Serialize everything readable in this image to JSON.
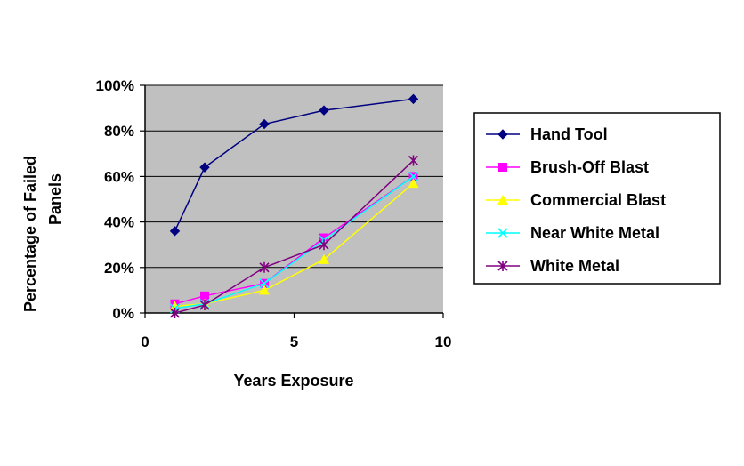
{
  "chart_data": {
    "type": "line",
    "xlabel": "Years Exposure",
    "ylabel_lines": [
      "Percentage of Failed",
      "Panels"
    ],
    "xlim": [
      0,
      10
    ],
    "ylim": [
      0,
      1
    ],
    "xticks": [
      {
        "value": 0,
        "label": "0"
      },
      {
        "value": 5,
        "label": "5"
      },
      {
        "value": 10,
        "label": "10"
      }
    ],
    "yticks": [
      {
        "value": 0,
        "label": "0%"
      },
      {
        "value": 0.2,
        "label": "20%"
      },
      {
        "value": 0.4,
        "label": "40%"
      },
      {
        "value": 0.6,
        "label": "60%"
      },
      {
        "value": 0.8,
        "label": "80%"
      },
      {
        "value": 1.0,
        "label": "100%"
      }
    ],
    "grid": "horizontal",
    "plot_background": "#C0C0C0",
    "legend_position": "right",
    "series": [
      {
        "name": "Hand Tool",
        "color": "#000080",
        "marker": "diamond",
        "x": [
          1,
          2,
          4,
          6,
          9
        ],
        "y": [
          0.36,
          0.64,
          0.83,
          0.89,
          0.94
        ]
      },
      {
        "name": "Brush-Off Blast",
        "color": "#FF00FF",
        "marker": "square",
        "x": [
          1,
          2,
          4,
          6,
          9
        ],
        "y": [
          0.04,
          0.075,
          0.13,
          0.33,
          0.6
        ]
      },
      {
        "name": "Commercial Blast",
        "color": "#FFFF00",
        "marker": "triangle",
        "x": [
          1,
          2,
          4,
          6,
          9
        ],
        "y": [
          0.03,
          0.04,
          0.1,
          0.235,
          0.57
        ]
      },
      {
        "name": "Near White Metal",
        "color": "#00FFFF",
        "marker": "x",
        "x": [
          1,
          2,
          4,
          6,
          9
        ],
        "y": [
          0.02,
          0.04,
          0.13,
          0.32,
          0.6
        ]
      },
      {
        "name": "White Metal",
        "color": "#800080",
        "marker": "star",
        "x": [
          1,
          2,
          4,
          6,
          9
        ],
        "y": [
          0.0,
          0.035,
          0.2,
          0.3,
          0.67
        ]
      }
    ]
  }
}
